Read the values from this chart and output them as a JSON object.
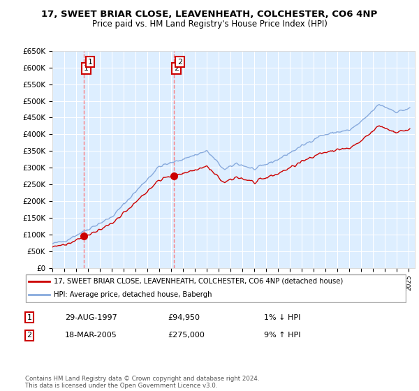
{
  "title": "17, SWEET BRIAR CLOSE, LEAVENHEATH, COLCHESTER, CO6 4NP",
  "subtitle": "Price paid vs. HM Land Registry's House Price Index (HPI)",
  "ylim": [
    0,
    650000
  ],
  "xlim_start": 1995.0,
  "xlim_end": 2025.5,
  "sale1_x": 1997.66,
  "sale1_y": 94950,
  "sale2_x": 2005.21,
  "sale2_y": 275000,
  "legend_line1": "17, SWEET BRIAR CLOSE, LEAVENHEATH, COLCHESTER, CO6 4NP (detached house)",
  "legend_line2": "HPI: Average price, detached house, Babergh",
  "table_row1_date": "29-AUG-1997",
  "table_row1_price": "£94,950",
  "table_row1_hpi": "1% ↓ HPI",
  "table_row2_date": "18-MAR-2005",
  "table_row2_price": "£275,000",
  "table_row2_hpi": "9% ↑ HPI",
  "footnote": "Contains HM Land Registry data © Crown copyright and database right 2024.\nThis data is licensed under the Open Government Licence v3.0.",
  "red_color": "#cc0000",
  "blue_color": "#88aadd",
  "background_color": "#ddeeff",
  "grid_color": "#ffffff",
  "dashed_color": "#ff6666"
}
